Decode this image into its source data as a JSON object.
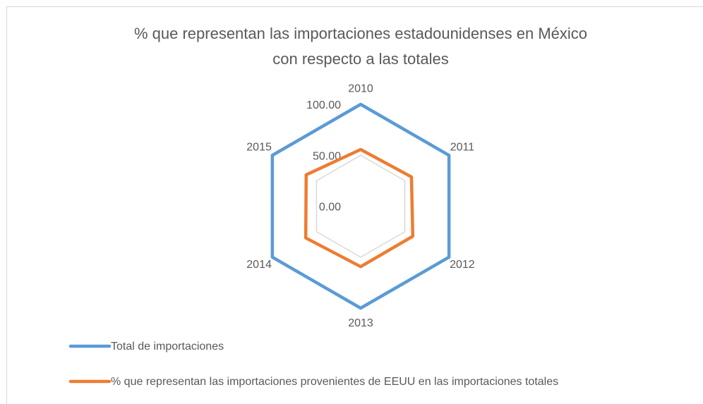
{
  "chart_data": {
    "type": "radar",
    "title": "% que representan las importaciones estadounidenses en México\ncon respecto a las totales",
    "categories": [
      "2010",
      "2011",
      "2012",
      "2013",
      "2014",
      "2015"
    ],
    "series": [
      {
        "name": "Total de importaciones",
        "color": "#5b9bd5",
        "values": [
          100,
          100,
          100,
          100,
          100,
          100
        ]
      },
      {
        "name": "% que representan las importaciones provenientes de EEUU en las importaciones totales",
        "color": "#ed7d31",
        "values": [
          55.7,
          57.5,
          59.0,
          59.3,
          62.2,
          61.7
        ]
      }
    ],
    "rlim": [
      0,
      100
    ],
    "rticks": [
      {
        "value": 0,
        "label": "0.00"
      },
      {
        "value": 50,
        "label": "50.00"
      },
      {
        "value": 100,
        "label": "100.00"
      }
    ],
    "grid": true,
    "legend": "bottom"
  }
}
